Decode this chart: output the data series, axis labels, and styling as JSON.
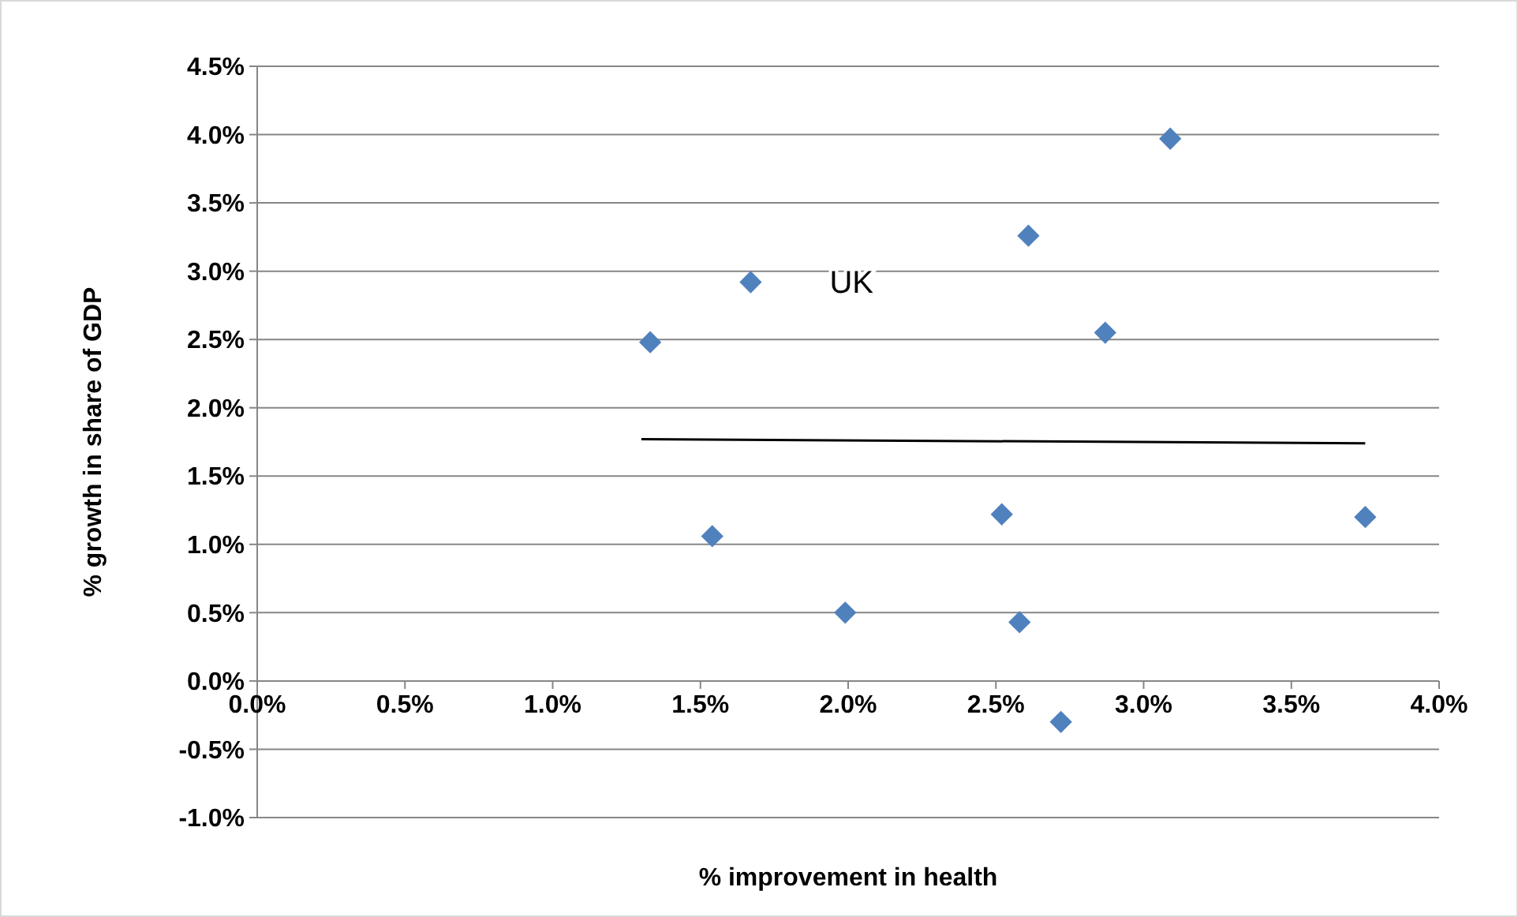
{
  "chart_data": {
    "type": "scatter",
    "xlabel": "% improvement in health",
    "ylabel": "% growth in share of GDP",
    "xlim": [
      0,
      4
    ],
    "ylim": [
      -1,
      4.5
    ],
    "xticks": [
      {
        "value": 0,
        "label": "0.0%"
      },
      {
        "value": 0.5,
        "label": "0.5%"
      },
      {
        "value": 1,
        "label": "1.0%"
      },
      {
        "value": 1.5,
        "label": "1.5%"
      },
      {
        "value": 2,
        "label": "2.0%"
      },
      {
        "value": 2.5,
        "label": "2.5%"
      },
      {
        "value": 3,
        "label": "3.0%"
      },
      {
        "value": 3.5,
        "label": "3.5%"
      },
      {
        "value": 4,
        "label": "4.0%"
      }
    ],
    "yticks": [
      {
        "value": -1,
        "label": "-1.0%"
      },
      {
        "value": -0.5,
        "label": "-0.5%"
      },
      {
        "value": 0,
        "label": "0.0%"
      },
      {
        "value": 0.5,
        "label": "0.5%"
      },
      {
        "value": 1,
        "label": "1.0%"
      },
      {
        "value": 1.5,
        "label": "1.5%"
      },
      {
        "value": 2,
        "label": "2.0%"
      },
      {
        "value": 2.5,
        "label": "2.5%"
      },
      {
        "value": 3,
        "label": "3.0%"
      },
      {
        "value": 3.5,
        "label": "3.5%"
      },
      {
        "value": 4,
        "label": "4.0%"
      },
      {
        "value": 4.5,
        "label": "4.5%"
      }
    ],
    "grid": "y",
    "series": [
      {
        "marker": "diamond",
        "color": "#4f81bd",
        "x": [
          1.33,
          1.67,
          1.54,
          1.99,
          2.52,
          2.58,
          2.61,
          2.72,
          2.87,
          3.09,
          3.75
        ],
        "values": [
          2.48,
          2.92,
          1.06,
          0.5,
          1.22,
          0.43,
          3.26,
          -0.3,
          2.55,
          3.97,
          1.2
        ]
      },
      {
        "type": "line",
        "color": "#000000",
        "x": [
          1.3,
          3.75
        ],
        "values": [
          1.77,
          1.74
        ]
      }
    ],
    "annotations": [
      {
        "text": "UK",
        "x": 1.67,
        "y": 2.92
      }
    ]
  }
}
